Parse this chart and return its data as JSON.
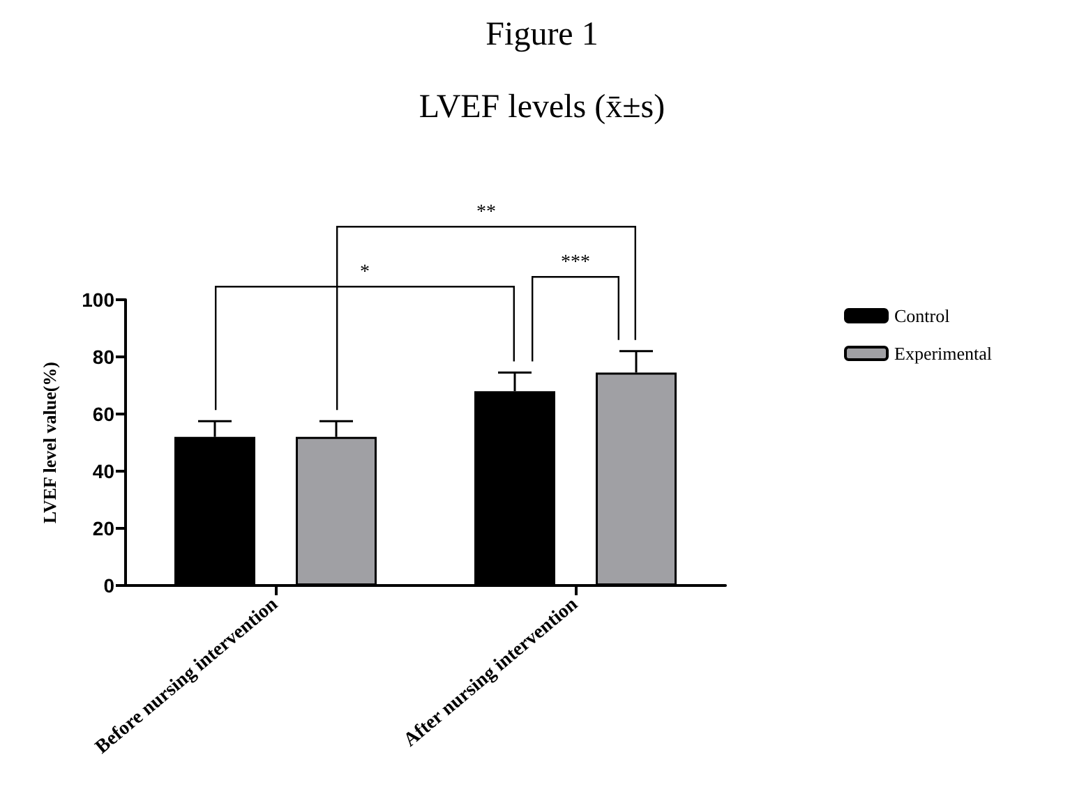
{
  "chart_data": {
    "type": "bar",
    "title": "Figure 1",
    "subtitle": "LVEF levels (x̄±s)",
    "ylabel": "LVEF level value(%)",
    "categories": [
      "Before nursing intervention",
      "After nursing intervention"
    ],
    "series": [
      {
        "name": "Control",
        "color": "#000000",
        "values": [
          52,
          68
        ],
        "errors": [
          [
            52,
            57.5
          ],
          [
            68,
            74.5
          ]
        ]
      },
      {
        "name": "Experimental",
        "color": "#a0a0a4",
        "values": [
          52,
          74.5
        ],
        "errors": [
          [
            52,
            57.5
          ],
          [
            74.5,
            82
          ]
        ]
      }
    ],
    "ylim": [
      0,
      100
    ],
    "yticks": [
      0,
      20,
      40,
      60,
      80,
      100
    ],
    "grid": false,
    "legend": "top right",
    "annotations": [
      "*",
      "**",
      "***"
    ]
  }
}
